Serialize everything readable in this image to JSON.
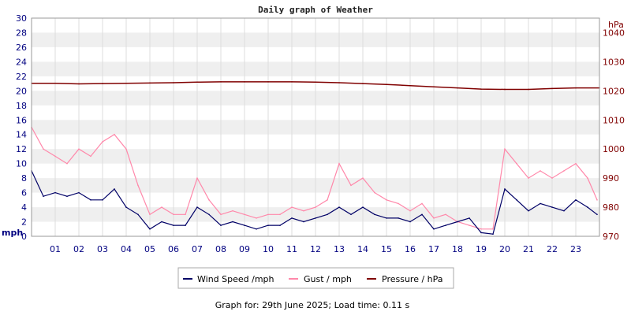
{
  "chart_data": {
    "type": "line",
    "title": "Daily graph of Weather",
    "x_tick_labels": [
      "01",
      "02",
      "03",
      "04",
      "05",
      "06",
      "07",
      "08",
      "09",
      "10",
      "11",
      "12",
      "13",
      "14",
      "15",
      "16",
      "17",
      "18",
      "19",
      "20",
      "21",
      "22",
      "23"
    ],
    "x_range_hours": [
      0,
      24
    ],
    "left_axis": {
      "unit": "mph",
      "ylim": [
        0,
        30
      ],
      "ticks": [
        0,
        2,
        4,
        6,
        8,
        10,
        12,
        14,
        16,
        18,
        20,
        22,
        24,
        26,
        28,
        30
      ]
    },
    "right_axis": {
      "unit": "hPa",
      "ylim": [
        970,
        1045
      ],
      "ticks": [
        970,
        980,
        990,
        1000,
        1010,
        1020,
        1030,
        1040
      ]
    },
    "series": [
      {
        "name": "Wind Speed /mph",
        "axis": "left",
        "color": "#000066",
        "x_hours": [
          0,
          0.5,
          1,
          1.5,
          2,
          2.5,
          3,
          3.5,
          4,
          4.5,
          5,
          5.5,
          6,
          6.5,
          7,
          7.5,
          8,
          8.5,
          9,
          9.5,
          10,
          10.5,
          11,
          11.5,
          12,
          12.5,
          13,
          13.5,
          14,
          14.5,
          15,
          15.5,
          16,
          16.5,
          17,
          17.5,
          18,
          18.5,
          19,
          19.5,
          20,
          20.5,
          21,
          21.5,
          22,
          22.5,
          23,
          23.5,
          23.9
        ],
        "values": [
          9,
          5.5,
          6,
          5.5,
          6,
          5,
          5,
          6.5,
          4,
          3,
          1,
          2,
          1.5,
          1.5,
          4,
          3,
          1.5,
          2,
          1.5,
          1,
          1.5,
          1.5,
          2.5,
          2,
          2.5,
          3,
          4,
          3,
          4,
          3,
          2.5,
          2.5,
          2,
          3,
          1,
          1.5,
          2,
          2.5,
          0.5,
          0.3,
          6.5,
          5,
          3.5,
          4.5,
          4,
          3.5,
          5,
          4,
          3
        ]
      },
      {
        "name": "Gust / mph",
        "axis": "left",
        "color": "#ff88aa",
        "x_hours": [
          0,
          0.5,
          1,
          1.5,
          2,
          2.5,
          3,
          3.5,
          4,
          4.5,
          5,
          5.5,
          6,
          6.5,
          7,
          7.5,
          8,
          8.5,
          9,
          9.5,
          10,
          10.5,
          11,
          11.5,
          12,
          12.5,
          13,
          13.5,
          14,
          14.5,
          15,
          15.5,
          16,
          16.5,
          17,
          17.5,
          18,
          18.5,
          19,
          19.5,
          20,
          20.5,
          21,
          21.5,
          22,
          22.5,
          23,
          23.5,
          23.9
        ],
        "values": [
          15,
          12,
          11,
          10,
          12,
          11,
          13,
          14,
          12,
          7,
          3,
          4,
          3,
          3,
          8,
          5,
          3,
          3.5,
          3,
          2.5,
          3,
          3,
          4,
          3.5,
          4,
          5,
          10,
          7,
          8,
          6,
          5,
          4.5,
          3.5,
          4.5,
          2.5,
          3,
          2,
          1.5,
          1,
          1,
          12,
          10,
          8,
          9,
          8,
          9,
          10,
          8,
          5
        ]
      },
      {
        "name": "Pressure / hPa",
        "axis": "right",
        "color": "#800000",
        "x_hours": [
          0,
          1,
          2,
          3,
          4,
          5,
          6,
          7,
          8,
          9,
          10,
          11,
          12,
          13,
          14,
          15,
          16,
          17,
          18,
          19,
          20,
          21,
          22,
          23,
          24
        ],
        "values": [
          1022.6,
          1022.6,
          1022.4,
          1022.5,
          1022.6,
          1022.7,
          1022.8,
          1023,
          1023.1,
          1023.1,
          1023.1,
          1023.1,
          1023,
          1022.8,
          1022.5,
          1022.2,
          1021.8,
          1021.4,
          1021,
          1020.6,
          1020.5,
          1020.5,
          1020.8,
          1021,
          1021
        ]
      }
    ],
    "gridlines": true,
    "legend_position": "bottom"
  },
  "footer": {
    "text": "Graph for: 29th June 2025; Load time: 0.11 s"
  }
}
